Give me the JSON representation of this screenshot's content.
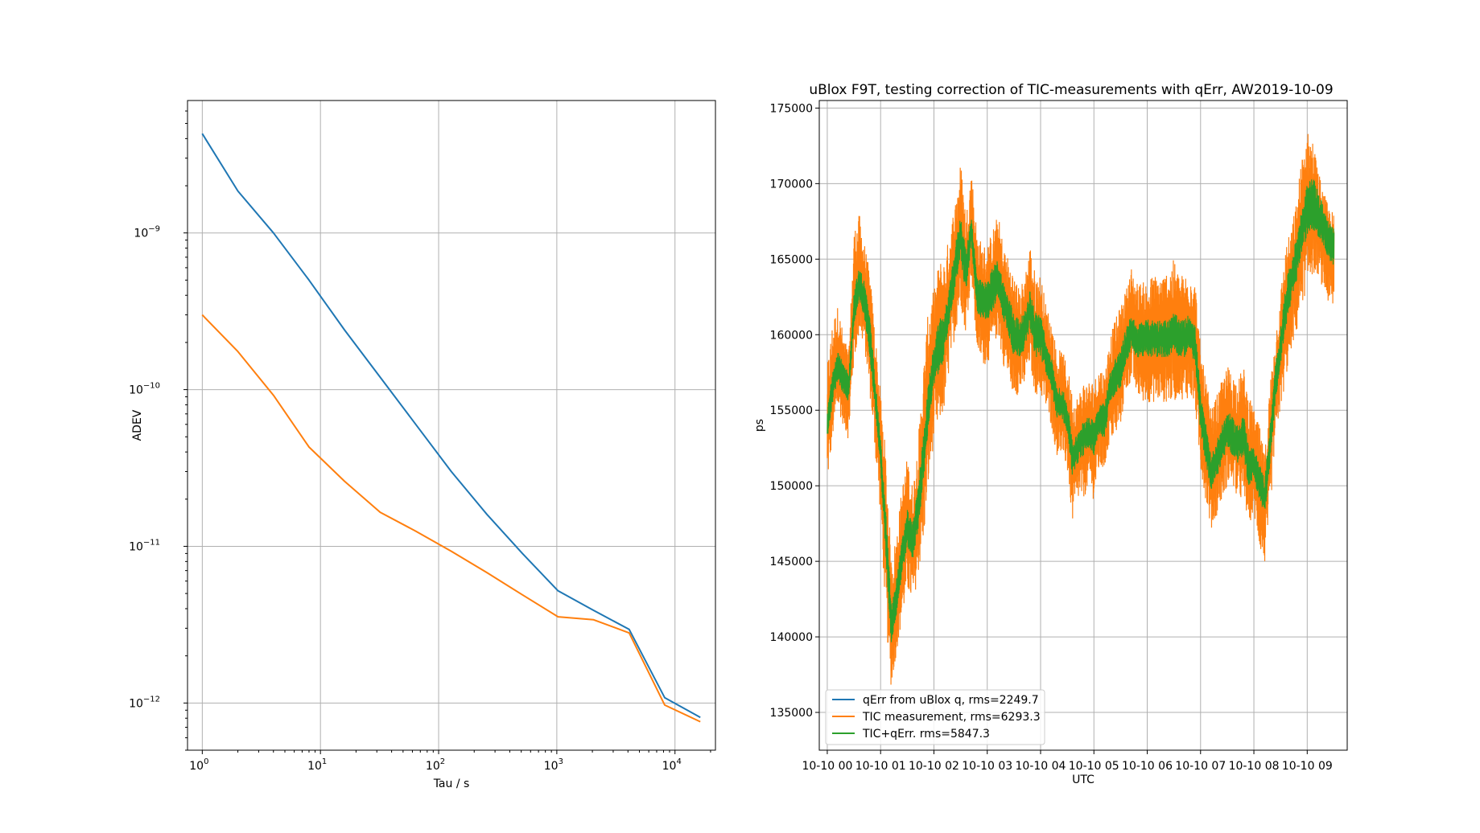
{
  "colors": {
    "c0": "#1f77b4",
    "c1": "#ff7f0e",
    "c2": "#2ca02c",
    "grid": "#b0b0b0"
  },
  "chart_data": [
    {
      "type": "line",
      "title": "",
      "xlabel": "Tau / s",
      "ylabel": "ADEV",
      "xscale": "log",
      "yscale": "log",
      "xlim": [
        0.75,
        22000
      ],
      "ylim": [
        5e-13,
        7e-09
      ],
      "grid": true,
      "xticks": [
        {
          "value": 1,
          "base": "10",
          "exp": "0"
        },
        {
          "value": 10,
          "base": "10",
          "exp": "1"
        },
        {
          "value": 100,
          "base": "10",
          "exp": "2"
        },
        {
          "value": 1000,
          "base": "10",
          "exp": "3"
        },
        {
          "value": 10000,
          "base": "10",
          "exp": "4"
        }
      ],
      "yticks": [
        {
          "value": 1e-12,
          "base": "10",
          "exp": "−12"
        },
        {
          "value": 1e-11,
          "base": "10",
          "exp": "−11"
        },
        {
          "value": 1e-10,
          "base": "10",
          "exp": "−10"
        },
        {
          "value": 1e-09,
          "base": "10",
          "exp": "−9"
        }
      ],
      "series": [
        {
          "color": "#1f77b4",
          "x": [
            1,
            2,
            4,
            8,
            16,
            32,
            64,
            128,
            256,
            512,
            1024,
            2048,
            4096,
            8192,
            16384
          ],
          "y": [
            4.3e-09,
            1.85e-09,
            1e-09,
            5e-10,
            2.4e-10,
            1.2e-10,
            6e-11,
            3e-11,
            1.6e-11,
            9e-12,
            5.2e-12,
            3.9e-12,
            2.95e-12,
            1.08e-12,
            8.1e-13
          ]
        },
        {
          "color": "#ff7f0e",
          "x": [
            1,
            2,
            4,
            8,
            16,
            32,
            64,
            128,
            256,
            512,
            1024,
            2048,
            4096,
            8192,
            16384
          ],
          "y": [
            3e-10,
            1.75e-10,
            9.2e-11,
            4.3e-11,
            2.6e-11,
            1.65e-11,
            1.25e-11,
            9.3e-12,
            6.8e-12,
            4.9e-12,
            3.55e-12,
            3.4e-12,
            2.8e-12,
            9.7e-13,
            7.6e-13
          ]
        }
      ]
    },
    {
      "type": "line",
      "title": "uBlox F9T, testing correction of TIC-measurements with qErr, AW2019-10-09",
      "xlabel": "UTC",
      "ylabel": "ps",
      "xunit": "hours since 2019-10-10 00:00 UTC",
      "xlim": [
        -0.15,
        9.75
      ],
      "ylim": [
        132500,
        175500
      ],
      "grid": true,
      "xticks": [
        {
          "value": 0,
          "label": "10-10 00"
        },
        {
          "value": 1,
          "label": "10-10 01"
        },
        {
          "value": 2,
          "label": "10-10 02"
        },
        {
          "value": 3,
          "label": "10-10 03"
        },
        {
          "value": 4,
          "label": "10-10 04"
        },
        {
          "value": 5,
          "label": "10-10 05"
        },
        {
          "value": 6,
          "label": "10-10 06"
        },
        {
          "value": 7,
          "label": "10-10 07"
        },
        {
          "value": 8,
          "label": "10-10 08"
        },
        {
          "value": 9,
          "label": "10-10 09"
        }
      ],
      "yticks": [
        {
          "value": 135000,
          "label": "135000"
        },
        {
          "value": 140000,
          "label": "140000"
        },
        {
          "value": 145000,
          "label": "145000"
        },
        {
          "value": 150000,
          "label": "150000"
        },
        {
          "value": 155000,
          "label": "155000"
        },
        {
          "value": 160000,
          "label": "160000"
        },
        {
          "value": 165000,
          "label": "165000"
        },
        {
          "value": 170000,
          "label": "170000"
        },
        {
          "value": 175000,
          "label": "175000"
        }
      ],
      "legend_position": "lower-left",
      "series": [
        {
          "name": "qErr from uBlox q, rms=2249.7",
          "color": "#1f77b4",
          "band": 0,
          "x": [],
          "y": []
        },
        {
          "name": "TIC measurement, rms=6293.3",
          "color": "#ff7f0e",
          "band": 1,
          "x": [
            0,
            0.1,
            0.2,
            0.3,
            0.4,
            0.5,
            0.6,
            0.7,
            0.8,
            0.9,
            1.0,
            1.1,
            1.2,
            1.3,
            1.4,
            1.5,
            1.6,
            1.7,
            1.8,
            1.9,
            2.0,
            2.1,
            2.2,
            2.3,
            2.4,
            2.5,
            2.6,
            2.7,
            2.8,
            2.9,
            3.0,
            3.1,
            3.2,
            3.3,
            3.4,
            3.5,
            3.6,
            3.7,
            3.8,
            3.9,
            4.0,
            4.1,
            4.2,
            4.3,
            4.4,
            4.5,
            4.6,
            4.7,
            4.8,
            4.9,
            5.0,
            5.1,
            5.2,
            5.3,
            5.4,
            5.5,
            5.6,
            5.7,
            5.8,
            5.9,
            6.0,
            6.1,
            6.2,
            6.3,
            6.4,
            6.5,
            6.6,
            6.7,
            6.8,
            6.9,
            7.0,
            7.1,
            7.2,
            7.3,
            7.4,
            7.5,
            7.6,
            7.7,
            7.8,
            7.9,
            8.0,
            8.1,
            8.2,
            8.3,
            8.4,
            8.5,
            8.6,
            8.7,
            8.8,
            8.9,
            9.0,
            9.1,
            9.2,
            9.3,
            9.4,
            9.5
          ],
          "ymin": [
            150000,
            153000,
            155000,
            154000,
            153000,
            158000,
            160000,
            159000,
            156000,
            152000,
            148000,
            141000,
            136500,
            139000,
            141000,
            143000,
            142000,
            144000,
            146000,
            150000,
            153000,
            154000,
            155000,
            158000,
            160000,
            162000,
            160000,
            164000,
            159000,
            158000,
            158000,
            159000,
            160000,
            158000,
            157000,
            156000,
            156000,
            156500,
            158000,
            156000,
            156000,
            155000,
            154000,
            152000,
            152000,
            151000,
            147500,
            149000,
            149000,
            150000,
            149000,
            151000,
            151000,
            153000,
            153000,
            154000,
            156000,
            157000,
            156000,
            155500,
            155500,
            155500,
            155500,
            155500,
            155500,
            155500,
            156000,
            155500,
            156000,
            155000,
            151000,
            149000,
            147000,
            148000,
            149000,
            150000,
            150000,
            149000,
            149000,
            147500,
            148000,
            146000,
            144700,
            148000,
            153000,
            155000,
            157000,
            159000,
            160000,
            162000,
            163000,
            164000,
            164000,
            163000,
            162000,
            161500
          ],
          "ymax": [
            158000,
            161000,
            162000,
            160000,
            159000,
            167000,
            168000,
            166000,
            164000,
            160000,
            156000,
            152000,
            145000,
            147000,
            150000,
            152000,
            150000,
            153000,
            158000,
            162000,
            163000,
            165000,
            165000,
            167000,
            169000,
            171500,
            168000,
            171000,
            167000,
            166000,
            166000,
            167000,
            168000,
            166000,
            165000,
            164000,
            163000,
            164000,
            166000,
            164000,
            164000,
            162000,
            161000,
            159000,
            159000,
            158000,
            156000,
            156000,
            157000,
            157000,
            157000,
            158000,
            157500,
            160000,
            161000,
            162000,
            163000,
            164500,
            163500,
            163500,
            163500,
            164000,
            164000,
            164000,
            164500,
            165000,
            164000,
            164000,
            164500,
            163500,
            159000,
            157000,
            155000,
            156000,
            157000,
            158000,
            157500,
            157000,
            158000,
            156000,
            155000,
            154000,
            152000,
            157000,
            160000,
            163000,
            166000,
            167000,
            169000,
            172000,
            173500,
            173000,
            171000,
            169500,
            168500,
            168000
          ]
        },
        {
          "name": "TIC+qErr. rms=5847.3",
          "color": "#2ca02c",
          "band": 1,
          "x": [
            0,
            0.1,
            0.2,
            0.3,
            0.4,
            0.5,
            0.6,
            0.7,
            0.8,
            0.9,
            1.0,
            1.1,
            1.2,
            1.3,
            1.4,
            1.5,
            1.6,
            1.7,
            1.8,
            1.9,
            2.0,
            2.1,
            2.2,
            2.3,
            2.4,
            2.5,
            2.6,
            2.7,
            2.8,
            2.9,
            3.0,
            3.1,
            3.2,
            3.3,
            3.4,
            3.5,
            3.6,
            3.7,
            3.8,
            3.9,
            4.0,
            4.1,
            4.2,
            4.3,
            4.4,
            4.5,
            4.6,
            4.7,
            4.8,
            4.9,
            5.0,
            5.1,
            5.2,
            5.3,
            5.4,
            5.5,
            5.6,
            5.7,
            5.8,
            5.9,
            6.0,
            6.1,
            6.2,
            6.3,
            6.4,
            6.5,
            6.6,
            6.7,
            6.8,
            6.9,
            7.0,
            7.1,
            7.2,
            7.3,
            7.4,
            7.5,
            7.6,
            7.7,
            7.8,
            7.9,
            8.0,
            8.1,
            8.2,
            8.3,
            8.4,
            8.5,
            8.6,
            8.7,
            8.8,
            8.9,
            9.0,
            9.1,
            9.2,
            9.3,
            9.4,
            9.5
          ],
          "ymin": [
            153000,
            155500,
            157000,
            156000,
            155500,
            160500,
            162000,
            161000,
            158500,
            155000,
            151000,
            145000,
            139500,
            141500,
            144000,
            146000,
            145000,
            147000,
            150000,
            154000,
            156500,
            157500,
            158500,
            161000,
            163000,
            165000,
            162500,
            166000,
            161500,
            161000,
            161000,
            161500,
            162500,
            161000,
            160000,
            158500,
            158500,
            159000,
            160500,
            158500,
            158500,
            157500,
            156500,
            154500,
            154500,
            153500,
            150500,
            151500,
            152000,
            152500,
            152000,
            153500,
            153000,
            155500,
            156000,
            156500,
            158000,
            159000,
            158500,
            158500,
            158500,
            158500,
            158500,
            158500,
            158500,
            159000,
            158500,
            158500,
            159000,
            158000,
            153500,
            151500,
            149500,
            150500,
            151500,
            152500,
            152000,
            151500,
            152000,
            150000,
            150500,
            149000,
            148000,
            151000,
            155500,
            158000,
            160500,
            162000,
            163500,
            165500,
            166500,
            167000,
            166500,
            166000,
            165000,
            164500
          ],
          "ymax": [
            155000,
            158000,
            159000,
            158000,
            157500,
            163000,
            164500,
            163500,
            161000,
            157000,
            153000,
            148000,
            142000,
            144000,
            146500,
            148500,
            147500,
            150000,
            153500,
            157000,
            159500,
            161000,
            161500,
            163500,
            166000,
            168000,
            165500,
            168000,
            164000,
            163500,
            163500,
            164500,
            165000,
            163500,
            162500,
            161500,
            161000,
            161500,
            163000,
            161500,
            161500,
            159500,
            158500,
            156500,
            156500,
            155500,
            153000,
            153500,
            154500,
            154500,
            154500,
            155500,
            155500,
            157500,
            158500,
            159000,
            160500,
            161500,
            160500,
            161000,
            161000,
            161000,
            161000,
            161000,
            161000,
            161500,
            161000,
            161000,
            161500,
            160500,
            156000,
            154000,
            152000,
            153000,
            154000,
            155000,
            154500,
            154000,
            155000,
            152500,
            152500,
            151500,
            150500,
            154000,
            158000,
            160500,
            163500,
            165000,
            166500,
            168500,
            170000,
            170500,
            169500,
            168500,
            167500,
            167000
          ]
        }
      ]
    }
  ]
}
